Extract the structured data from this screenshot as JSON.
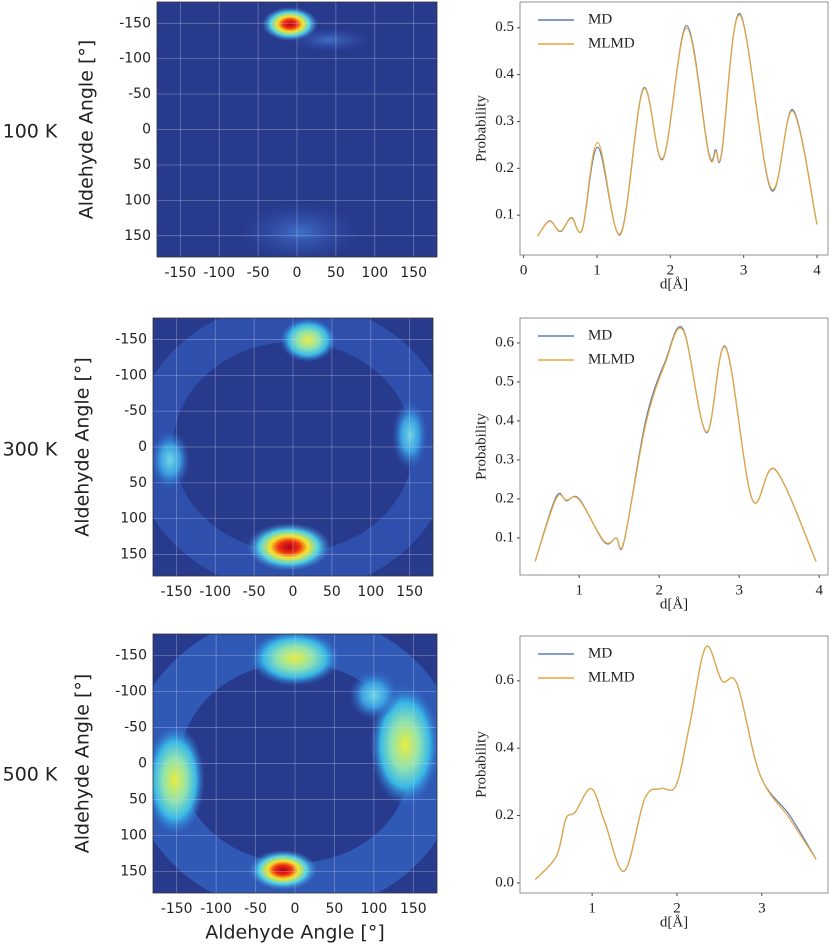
{
  "row_labels": [
    "100 K",
    "300 K",
    "500 K"
  ],
  "chart_data": [
    {
      "type": "heatmap",
      "ylabel": "Aldehyde Angle [°]",
      "xlim": [
        -180,
        180
      ],
      "ylim": [
        -180,
        180
      ],
      "y_inverted": true,
      "xticks": [
        -150,
        -100,
        -50,
        0,
        50,
        100,
        150
      ],
      "yticks": [
        -150,
        -100,
        -50,
        0,
        50,
        100,
        150
      ],
      "grid": true
    },
    {
      "type": "line",
      "ylabel": "Probability",
      "xlabel": "d[Å]",
      "xlim": [
        -0.05,
        4.15
      ],
      "ylim": [
        0.015,
        0.555
      ],
      "xticks": [
        0,
        1,
        2,
        3,
        4
      ],
      "yticks": [
        0.1,
        0.2,
        0.3,
        0.4,
        0.5
      ],
      "legend": "upper left",
      "x": [
        0.19,
        0.35,
        0.5,
        0.65,
        0.8,
        1.01,
        1.32,
        1.63,
        1.9,
        2.22,
        2.52,
        2.62,
        2.7,
        2.95,
        3.37,
        3.67,
        4.0
      ],
      "series": [
        {
          "name": "MD",
          "color": "#5a7db5",
          "values": [
            0.055,
            0.088,
            0.065,
            0.095,
            0.07,
            0.245,
            0.06,
            0.37,
            0.22,
            0.505,
            0.235,
            0.24,
            0.232,
            0.53,
            0.155,
            0.325,
            0.08
          ]
        },
        {
          "name": "MLMD",
          "color": "#eba63a",
          "values": [
            0.055,
            0.087,
            0.066,
            0.094,
            0.071,
            0.255,
            0.058,
            0.368,
            0.222,
            0.5,
            0.232,
            0.236,
            0.235,
            0.527,
            0.158,
            0.322,
            0.08
          ]
        }
      ]
    },
    {
      "type": "heatmap",
      "ylabel": "Aldehyde Angle [°]",
      "xlim": [
        -180,
        180
      ],
      "ylim": [
        -180,
        180
      ],
      "y_inverted": true,
      "xticks": [
        -150,
        -100,
        -50,
        0,
        50,
        100,
        150
      ],
      "yticks": [
        -150,
        -100,
        -50,
        0,
        50,
        100,
        150
      ],
      "grid": true
    },
    {
      "type": "line",
      "ylabel": "Probability",
      "xlabel": "d[Å]",
      "xlim": [
        0.26,
        4.11
      ],
      "ylim": [
        0.005,
        0.664
      ],
      "xticks": [
        1,
        2,
        3,
        4
      ],
      "yticks": [
        0.1,
        0.2,
        0.3,
        0.4,
        0.5,
        0.6
      ],
      "legend": "upper left",
      "x": [
        0.45,
        0.71,
        0.84,
        1.0,
        1.31,
        1.46,
        1.56,
        1.83,
        2.07,
        2.3,
        2.59,
        2.83,
        3.16,
        3.45,
        3.96
      ],
      "series": [
        {
          "name": "MD",
          "color": "#5a7db5",
          "values": [
            0.04,
            0.205,
            0.195,
            0.2,
            0.09,
            0.1,
            0.09,
            0.4,
            0.55,
            0.635,
            0.37,
            0.59,
            0.2,
            0.275,
            0.04
          ]
        },
        {
          "name": "MLMD",
          "color": "#eba63a",
          "values": [
            0.04,
            0.2,
            0.197,
            0.198,
            0.092,
            0.1,
            0.092,
            0.39,
            0.545,
            0.632,
            0.372,
            0.588,
            0.2,
            0.276,
            0.04
          ]
        }
      ]
    },
    {
      "type": "heatmap",
      "ylabel": "Aldehyde Angle [°]",
      "xlabel": "Aldehyde Angle [°]",
      "xlim": [
        -180,
        180
      ],
      "ylim": [
        -180,
        180
      ],
      "y_inverted": true,
      "xticks": [
        -150,
        -100,
        -50,
        0,
        50,
        100,
        150
      ],
      "yticks": [
        -150,
        -100,
        -50,
        0,
        50,
        100,
        150
      ],
      "grid": true
    },
    {
      "type": "line",
      "ylabel": "Probability",
      "xlabel": "d[Å]",
      "xlim": [
        0.15,
        3.78
      ],
      "ylim": [
        -0.03,
        0.733
      ],
      "xticks": [
        1,
        2,
        3
      ],
      "yticks": [
        {
          "value": 0,
          "label": "0.0"
        },
        0.2,
        0.4,
        0.6
      ],
      "legend": "upper left",
      "x": [
        0.33,
        0.58,
        0.69,
        0.8,
        0.99,
        1.15,
        1.38,
        1.62,
        1.81,
        1.99,
        2.15,
        2.34,
        2.53,
        2.71,
        2.98,
        3.33,
        3.64
      ],
      "series": [
        {
          "name": "MD",
          "color": "#5a7db5",
          "values": [
            0.01,
            0.08,
            0.19,
            0.21,
            0.28,
            0.18,
            0.035,
            0.25,
            0.28,
            0.29,
            0.47,
            0.7,
            0.6,
            0.59,
            0.32,
            0.2,
            0.07
          ]
        },
        {
          "name": "MLMD",
          "color": "#eba63a",
          "values": [
            0.01,
            0.08,
            0.19,
            0.21,
            0.28,
            0.18,
            0.035,
            0.25,
            0.28,
            0.29,
            0.47,
            0.7,
            0.6,
            0.59,
            0.32,
            0.19,
            0.07
          ]
        }
      ]
    }
  ]
}
